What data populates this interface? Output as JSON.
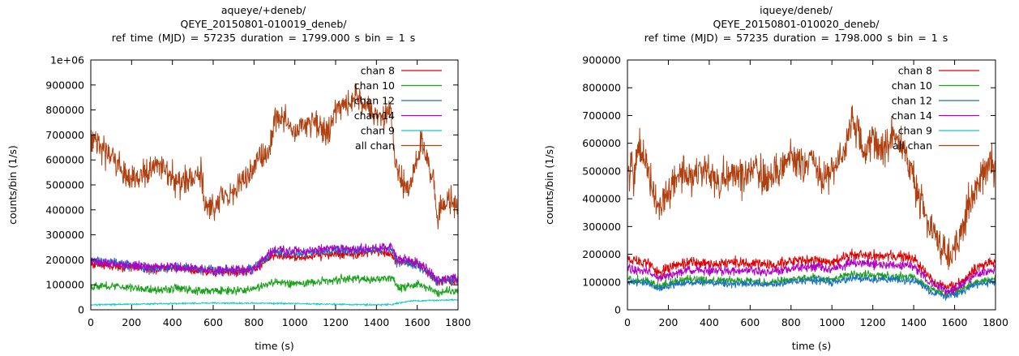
{
  "chart_data": [
    {
      "type": "line",
      "title_lines": [
        "aqueye/+deneb/",
        "QEYE_20150801-010019_deneb/",
        "ref time (MJD) = 57235     duration = 1799.000 s     bin = 1 s"
      ],
      "xlabel": "time (s)",
      "ylabel": "counts/bin (1/s)",
      "xlim": [
        0,
        1800
      ],
      "ylim": [
        0,
        1000000
      ],
      "xticks": [
        0,
        200,
        400,
        600,
        800,
        1000,
        1200,
        1400,
        1600,
        1800
      ],
      "yticks": [
        0,
        100000,
        200000,
        300000,
        400000,
        500000,
        600000,
        700000,
        800000,
        900000,
        1000000
      ],
      "ytick_labels": [
        "0",
        "100000",
        "200000",
        "300000",
        "400000",
        "500000",
        "600000",
        "700000",
        "800000",
        "900000",
        "1e+06"
      ],
      "legend_position": "top-right",
      "series": [
        {
          "name": "chan 8",
          "color": "#e00000",
          "noise": 15000,
          "x": [
            0,
            100,
            200,
            300,
            400,
            500,
            600,
            700,
            800,
            900,
            1000,
            1100,
            1200,
            1300,
            1400,
            1480,
            1500,
            1600,
            1650,
            1700,
            1800
          ],
          "y": [
            185000,
            175000,
            170000,
            160000,
            170000,
            160000,
            150000,
            150000,
            160000,
            220000,
            210000,
            215000,
            225000,
            220000,
            230000,
            220000,
            190000,
            190000,
            150000,
            110000,
            115000
          ]
        },
        {
          "name": "chan 10",
          "color": "#1aa01a",
          "noise": 14000,
          "x": [
            0,
            100,
            200,
            300,
            400,
            500,
            600,
            700,
            800,
            900,
            1000,
            1100,
            1200,
            1300,
            1400,
            1480,
            1500,
            1600,
            1650,
            1700,
            1800
          ],
          "y": [
            95000,
            95000,
            90000,
            80000,
            85000,
            80000,
            75000,
            75000,
            85000,
            110000,
            105000,
            110000,
            120000,
            125000,
            120000,
            130000,
            90000,
            100000,
            90000,
            70000,
            80000
          ]
        },
        {
          "name": "chan 12",
          "color": "#1a70c0",
          "noise": 16000,
          "x": [
            0,
            100,
            200,
            300,
            400,
            500,
            600,
            700,
            800,
            900,
            1000,
            1100,
            1200,
            1300,
            1400,
            1480,
            1500,
            1600,
            1650,
            1700,
            1800
          ],
          "y": [
            200000,
            190000,
            175000,
            165000,
            170000,
            165000,
            160000,
            160000,
            165000,
            235000,
            225000,
            230000,
            240000,
            235000,
            240000,
            245000,
            190000,
            180000,
            150000,
            115000,
            120000
          ]
        },
        {
          "name": "chan 14",
          "color": "#b000c8",
          "noise": 17000,
          "x": [
            0,
            100,
            200,
            300,
            400,
            500,
            600,
            700,
            800,
            900,
            1000,
            1100,
            1200,
            1300,
            1400,
            1480,
            1500,
            1600,
            1650,
            1700,
            1800
          ],
          "y": [
            195000,
            185000,
            180000,
            170000,
            175000,
            165000,
            155000,
            160000,
            165000,
            240000,
            235000,
            240000,
            250000,
            240000,
            245000,
            250000,
            200000,
            190000,
            160000,
            120000,
            125000
          ]
        },
        {
          "name": "chan 9",
          "color": "#18c8c8",
          "noise": 2500,
          "x": [
            0,
            200,
            400,
            600,
            800,
            1000,
            1200,
            1400,
            1480,
            1560,
            1700,
            1800
          ],
          "y": [
            20000,
            22000,
            25000,
            27000,
            26000,
            25000,
            22000,
            20000,
            22000,
            35000,
            38000,
            40000
          ]
        },
        {
          "name": "all chan",
          "color": "#b04010",
          "noise": 45000,
          "x": [
            0,
            20,
            60,
            100,
            150,
            200,
            260,
            320,
            380,
            420,
            480,
            540,
            560,
            600,
            640,
            700,
            760,
            820,
            880,
            900,
            960,
            1000,
            1060,
            1100,
            1160,
            1200,
            1260,
            1300,
            1360,
            1400,
            1440,
            1470,
            1490,
            1520,
            1560,
            1600,
            1620,
            1650,
            1680,
            1700,
            1720,
            1760,
            1800
          ],
          "y": [
            690000,
            700000,
            640000,
            620000,
            560000,
            510000,
            540000,
            580000,
            560000,
            500000,
            530000,
            540000,
            430000,
            400000,
            450000,
            480000,
            520000,
            600000,
            640000,
            780000,
            760000,
            720000,
            760000,
            740000,
            700000,
            800000,
            820000,
            860000,
            800000,
            780000,
            760000,
            820000,
            600000,
            520000,
            480000,
            600000,
            680000,
            600000,
            520000,
            350000,
            430000,
            440000,
            420000
          ]
        }
      ]
    },
    {
      "type": "line",
      "title_lines": [
        "iqueye/deneb/",
        "QEYE_20150801-010020_deneb/",
        "ref time (MJD) = 57235     duration = 1798.000 s     bin = 1 s"
      ],
      "xlabel": "time (s)",
      "ylabel": "counts/bin (1/s)",
      "xlim": [
        0,
        1800
      ],
      "ylim": [
        0,
        900000
      ],
      "xticks": [
        0,
        200,
        400,
        600,
        800,
        1000,
        1200,
        1400,
        1600,
        1800
      ],
      "yticks": [
        0,
        100000,
        200000,
        300000,
        400000,
        500000,
        600000,
        700000,
        800000,
        900000
      ],
      "ytick_labels": [
        "0",
        "100000",
        "200000",
        "300000",
        "400000",
        "500000",
        "600000",
        "700000",
        "800000",
        "900000"
      ],
      "legend_position": "top-right",
      "series": [
        {
          "name": "chan 8",
          "color": "#e00000",
          "noise": 17000,
          "x": [
            0,
            100,
            150,
            200,
            300,
            400,
            500,
            600,
            700,
            800,
            900,
            1000,
            1100,
            1200,
            1300,
            1400,
            1450,
            1500,
            1550,
            1600,
            1650,
            1700,
            1800
          ],
          "y": [
            185000,
            170000,
            130000,
            150000,
            170000,
            165000,
            170000,
            165000,
            160000,
            175000,
            180000,
            170000,
            200000,
            195000,
            190000,
            185000,
            140000,
            100000,
            80000,
            85000,
            110000,
            150000,
            175000
          ]
        },
        {
          "name": "chan 10",
          "color": "#1aa01a",
          "noise": 12000,
          "x": [
            0,
            100,
            150,
            200,
            300,
            400,
            500,
            600,
            700,
            800,
            900,
            1000,
            1100,
            1200,
            1300,
            1400,
            1450,
            1500,
            1550,
            1600,
            1650,
            1700,
            1800
          ],
          "y": [
            110000,
            105000,
            85000,
            95000,
            110000,
            105000,
            105000,
            105000,
            100000,
            110000,
            115000,
            110000,
            130000,
            125000,
            120000,
            120000,
            90000,
            70000,
            55000,
            60000,
            80000,
            100000,
            110000
          ]
        },
        {
          "name": "chan 12",
          "color": "#1a70c0",
          "noise": 11000,
          "x": [
            0,
            100,
            150,
            200,
            300,
            400,
            500,
            600,
            700,
            800,
            900,
            1000,
            1100,
            1200,
            1300,
            1400,
            1450,
            1500,
            1550,
            1600,
            1650,
            1700,
            1800
          ],
          "y": [
            100000,
            95000,
            75000,
            85000,
            100000,
            95000,
            95000,
            95000,
            90000,
            100000,
            105000,
            100000,
            115000,
            110000,
            110000,
            105000,
            80000,
            60000,
            50000,
            55000,
            70000,
            90000,
            100000
          ]
        },
        {
          "name": "chan 14",
          "color": "#b000c8",
          "noise": 14000,
          "x": [
            0,
            100,
            150,
            200,
            300,
            400,
            500,
            600,
            700,
            800,
            900,
            1000,
            1100,
            1200,
            1300,
            1400,
            1450,
            1500,
            1550,
            1600,
            1650,
            1700,
            1800
          ],
          "y": [
            150000,
            140000,
            110000,
            125000,
            145000,
            140000,
            140000,
            140000,
            135000,
            150000,
            155000,
            145000,
            170000,
            165000,
            160000,
            160000,
            120000,
            90000,
            70000,
            75000,
            95000,
            125000,
            145000
          ]
        },
        {
          "name": "chan 9",
          "color": "#18c8c8",
          "noise": 0,
          "x": [],
          "y": []
        },
        {
          "name": "all chan",
          "color": "#b04010",
          "noise": 55000,
          "x": [
            0,
            30,
            60,
            100,
            150,
            200,
            260,
            320,
            380,
            440,
            500,
            560,
            620,
            680,
            740,
            800,
            860,
            900,
            960,
            1000,
            1060,
            1100,
            1160,
            1200,
            1260,
            1300,
            1340,
            1380,
            1420,
            1460,
            1500,
            1540,
            1580,
            1620,
            1660,
            1700,
            1740,
            1780,
            1800
          ],
          "y": [
            520000,
            480000,
            600000,
            500000,
            380000,
            420000,
            500000,
            470000,
            520000,
            460000,
            500000,
            480000,
            520000,
            470000,
            500000,
            560000,
            500000,
            540000,
            470000,
            520000,
            560000,
            700000,
            560000,
            620000,
            580000,
            640000,
            600000,
            520000,
            420000,
            330000,
            280000,
            220000,
            200000,
            260000,
            360000,
            440000,
            500000,
            520000,
            500000
          ]
        }
      ]
    }
  ]
}
